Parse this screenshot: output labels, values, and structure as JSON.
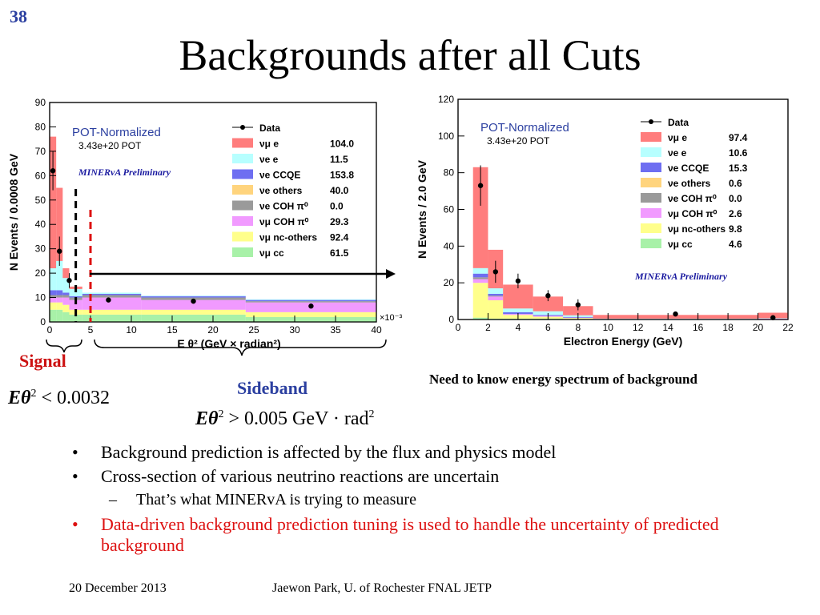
{
  "slide": {
    "number": "38",
    "title": "Backgrounds after all Cuts",
    "signal_label": "Signal",
    "sideband_label": "Sideband",
    "signal_formula": {
      "var": "Eθ",
      "exp": "2",
      "rel": "< 0.0032"
    },
    "sideband_formula": {
      "var": "Eθ",
      "exp": "2",
      "rel": "> 0.005 GeV · rad",
      "unit_exp": "2"
    },
    "note": "Need to know energy spectrum of background",
    "bullets": [
      "Background prediction is affected by the flux and physics model",
      "Cross-section of various neutrino reactions are uncertain"
    ],
    "sub_bullet": "That’s what MINERvA is trying to measure",
    "red_bullet": "Data-driven background prediction tuning is used to handle the uncertainty of predicted background",
    "footer_date": "20 December 2013",
    "footer_author": "Jaewon Park, U. of Rochester  FNAL JETP"
  },
  "colors": {
    "nc_pi0": "#ff6666",
    "nue_e": "#aaffff",
    "nue_ccqe": "#5555ee",
    "nue_others": "#ffcc66",
    "nue_coh": "#888888",
    "numu_coh": "#ee88ff",
    "nc_others": "#ffff77",
    "numu_cc": "#99ee99",
    "signal_line": "#dd1111",
    "title_blue": "#2b3fa0"
  },
  "chart_data": [
    {
      "type": "bar",
      "stacked": true,
      "ylabel": "N Events / 0.0008 GeV",
      "xlabel": "E θ² (GeV × radian²)",
      "x_multiplier": "×10⁻³",
      "xlim": [
        0,
        40
      ],
      "ylim": [
        0,
        90
      ],
      "xticks": [
        0,
        5,
        10,
        15,
        20,
        25,
        30,
        35,
        40
      ],
      "yticks": [
        0,
        10,
        20,
        30,
        40,
        50,
        60,
        70,
        80,
        90
      ],
      "annotation_title": "POT-Normalized",
      "annotation_pot": "3.43e+20 POT",
      "preliminary": "MINERvA Preliminary",
      "signal_cut": 3.2,
      "sideband_cut": 5.0,
      "legend": [
        {
          "name": "Data",
          "value": ""
        },
        {
          "name": "νμ e",
          "value": "104.0"
        },
        {
          "name": "νe e",
          "value": "11.5"
        },
        {
          "name": "νe CCQE",
          "value": "153.8"
        },
        {
          "name": "νe others",
          "value": "40.0"
        },
        {
          "name": "νe COH π⁰",
          "value": "0.0"
        },
        {
          "name": "νμ COH π⁰",
          "value": "29.3"
        },
        {
          "name": "νμ nc-others",
          "value": "92.4"
        },
        {
          "name": "νμ cc",
          "value": "61.5"
        }
      ],
      "bins": [
        {
          "lo": 0,
          "hi": 0.8,
          "stack": [
            5,
            3,
            2,
            1,
            0,
            2,
            9,
            54
          ]
        },
        {
          "lo": 0.8,
          "hi": 1.6,
          "stack": [
            5,
            3,
            2,
            1,
            0,
            2,
            12,
            30
          ]
        },
        {
          "lo": 1.6,
          "hi": 2.4,
          "stack": [
            4,
            3,
            3,
            1,
            0,
            1,
            6,
            4
          ]
        },
        {
          "lo": 2.4,
          "hi": 4.0,
          "stack": [
            3,
            2,
            4,
            1,
            0,
            0.5,
            3,
            1
          ]
        },
        {
          "lo": 4.0,
          "hi": 11.2,
          "stack": [
            3,
            2,
            5,
            1,
            0,
            0.5,
            0.5,
            0
          ]
        },
        {
          "lo": 11.2,
          "hi": 24.0,
          "stack": [
            3,
            2,
            4,
            1,
            0,
            0.5,
            0.3,
            0
          ]
        },
        {
          "lo": 24.0,
          "hi": 40.0,
          "stack": [
            2,
            2,
            4,
            0.5,
            0,
            0.5,
            0.3,
            0
          ]
        }
      ],
      "data_points": [
        {
          "x": 0.4,
          "y": 62,
          "err": 8
        },
        {
          "x": 1.2,
          "y": 29,
          "err": 6
        },
        {
          "x": 2.4,
          "y": 17,
          "err": 3
        },
        {
          "x": 7.2,
          "y": 9,
          "err": 1
        },
        {
          "x": 17.6,
          "y": 8.5,
          "err": 0.8
        },
        {
          "x": 32.0,
          "y": 6.5,
          "err": 0.7
        }
      ]
    },
    {
      "type": "bar",
      "stacked": true,
      "ylabel": "N Events / 2.0 GeV",
      "xlabel": "Electron Energy (GeV)",
      "xlim": [
        0,
        22
      ],
      "ylim": [
        0,
        120
      ],
      "xticks": [
        0,
        2,
        4,
        6,
        8,
        10,
        12,
        14,
        16,
        18,
        20,
        22
      ],
      "yticks": [
        0,
        20,
        40,
        60,
        80,
        100,
        120
      ],
      "annotation_title": "POT-Normalized",
      "annotation_pot": "3.43e+20 POT",
      "preliminary": "MINERvA Preliminary",
      "legend": [
        {
          "name": "Data",
          "value": ""
        },
        {
          "name": "νμ e",
          "value": "97.4"
        },
        {
          "name": "νe e",
          "value": "10.6"
        },
        {
          "name": "νe CCQE",
          "value": "15.3"
        },
        {
          "name": "νe others",
          "value": "0.6"
        },
        {
          "name": "νe COH π⁰",
          "value": "0.0"
        },
        {
          "name": "νμ COH π⁰",
          "value": "2.6"
        },
        {
          "name": "νμ nc-others",
          "value": "9.8"
        },
        {
          "name": "νμ cc",
          "value": "4.6"
        }
      ],
      "bins": [
        {
          "lo": 1,
          "hi": 2,
          "stack": [
            1,
            19,
            2,
            1,
            0,
            2,
            3,
            55
          ]
        },
        {
          "lo": 2,
          "hi": 3,
          "stack": [
            0.5,
            10,
            2,
            0.5,
            0,
            1,
            3,
            21
          ]
        },
        {
          "lo": 3,
          "hi": 5,
          "stack": [
            0.5,
            2,
            0.5,
            0,
            0,
            1,
            2,
            13
          ]
        },
        {
          "lo": 5,
          "hi": 7,
          "stack": [
            0.5,
            1,
            0.5,
            0,
            0,
            0.5,
            2,
            8
          ]
        },
        {
          "lo": 7,
          "hi": 9,
          "stack": [
            0.3,
            0.5,
            0.2,
            0,
            0,
            0.3,
            1,
            5
          ]
        },
        {
          "lo": 9,
          "hi": 20,
          "stack": [
            0,
            0,
            0.3,
            0,
            0,
            0,
            0.2,
            2
          ]
        },
        {
          "lo": 20,
          "hi": 22,
          "stack": [
            0,
            0,
            0.5,
            0,
            0,
            0,
            0.2,
            3
          ]
        }
      ],
      "data_points": [
        {
          "x": 1.5,
          "y": 73,
          "err": 11
        },
        {
          "x": 2.5,
          "y": 26,
          "err": 6
        },
        {
          "x": 4.0,
          "y": 21,
          "err": 4
        },
        {
          "x": 6.0,
          "y": 13,
          "err": 3
        },
        {
          "x": 8.0,
          "y": 8,
          "err": 3
        },
        {
          "x": 14.5,
          "y": 3,
          "err": 1
        },
        {
          "x": 21.0,
          "y": 1,
          "err": 1
        }
      ]
    }
  ]
}
